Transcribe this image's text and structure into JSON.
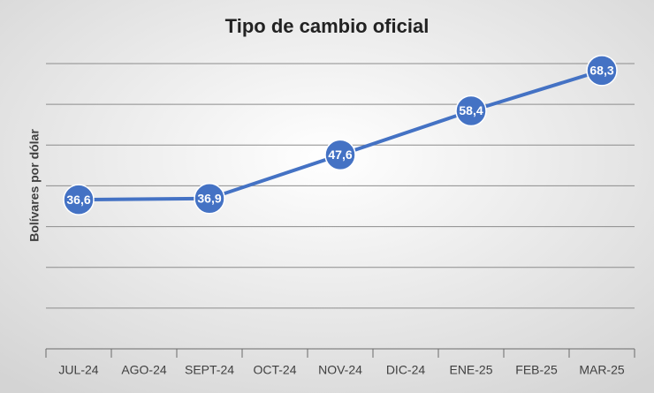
{
  "chart_data": {
    "type": "line",
    "title": "Tipo de cambio oficial",
    "y_label": "Bolívares por dólar",
    "categories": [
      "JUL-24",
      "AGO-24",
      "SEPT-24",
      "OCT-24",
      "NOV-24",
      "DIC-24",
      "ENE-25",
      "FEB-25",
      "MAR-25"
    ],
    "series": [
      {
        "name": "Tipo de cambio oficial",
        "color": "#4472c4",
        "values": [
          36.6,
          null,
          36.9,
          null,
          47.6,
          null,
          58.4,
          null,
          68.3
        ],
        "value_labels": [
          "36,6",
          null,
          "36,9",
          null,
          "47,6",
          null,
          "58,4",
          null,
          "68,3"
        ]
      }
    ],
    "ylim": [
      0,
      70
    ],
    "yticks": [
      0,
      10,
      20,
      30,
      40,
      50,
      60,
      70
    ],
    "grid": true,
    "show_y_tick_labels": false,
    "span_gaps": true,
    "legend": false
  }
}
